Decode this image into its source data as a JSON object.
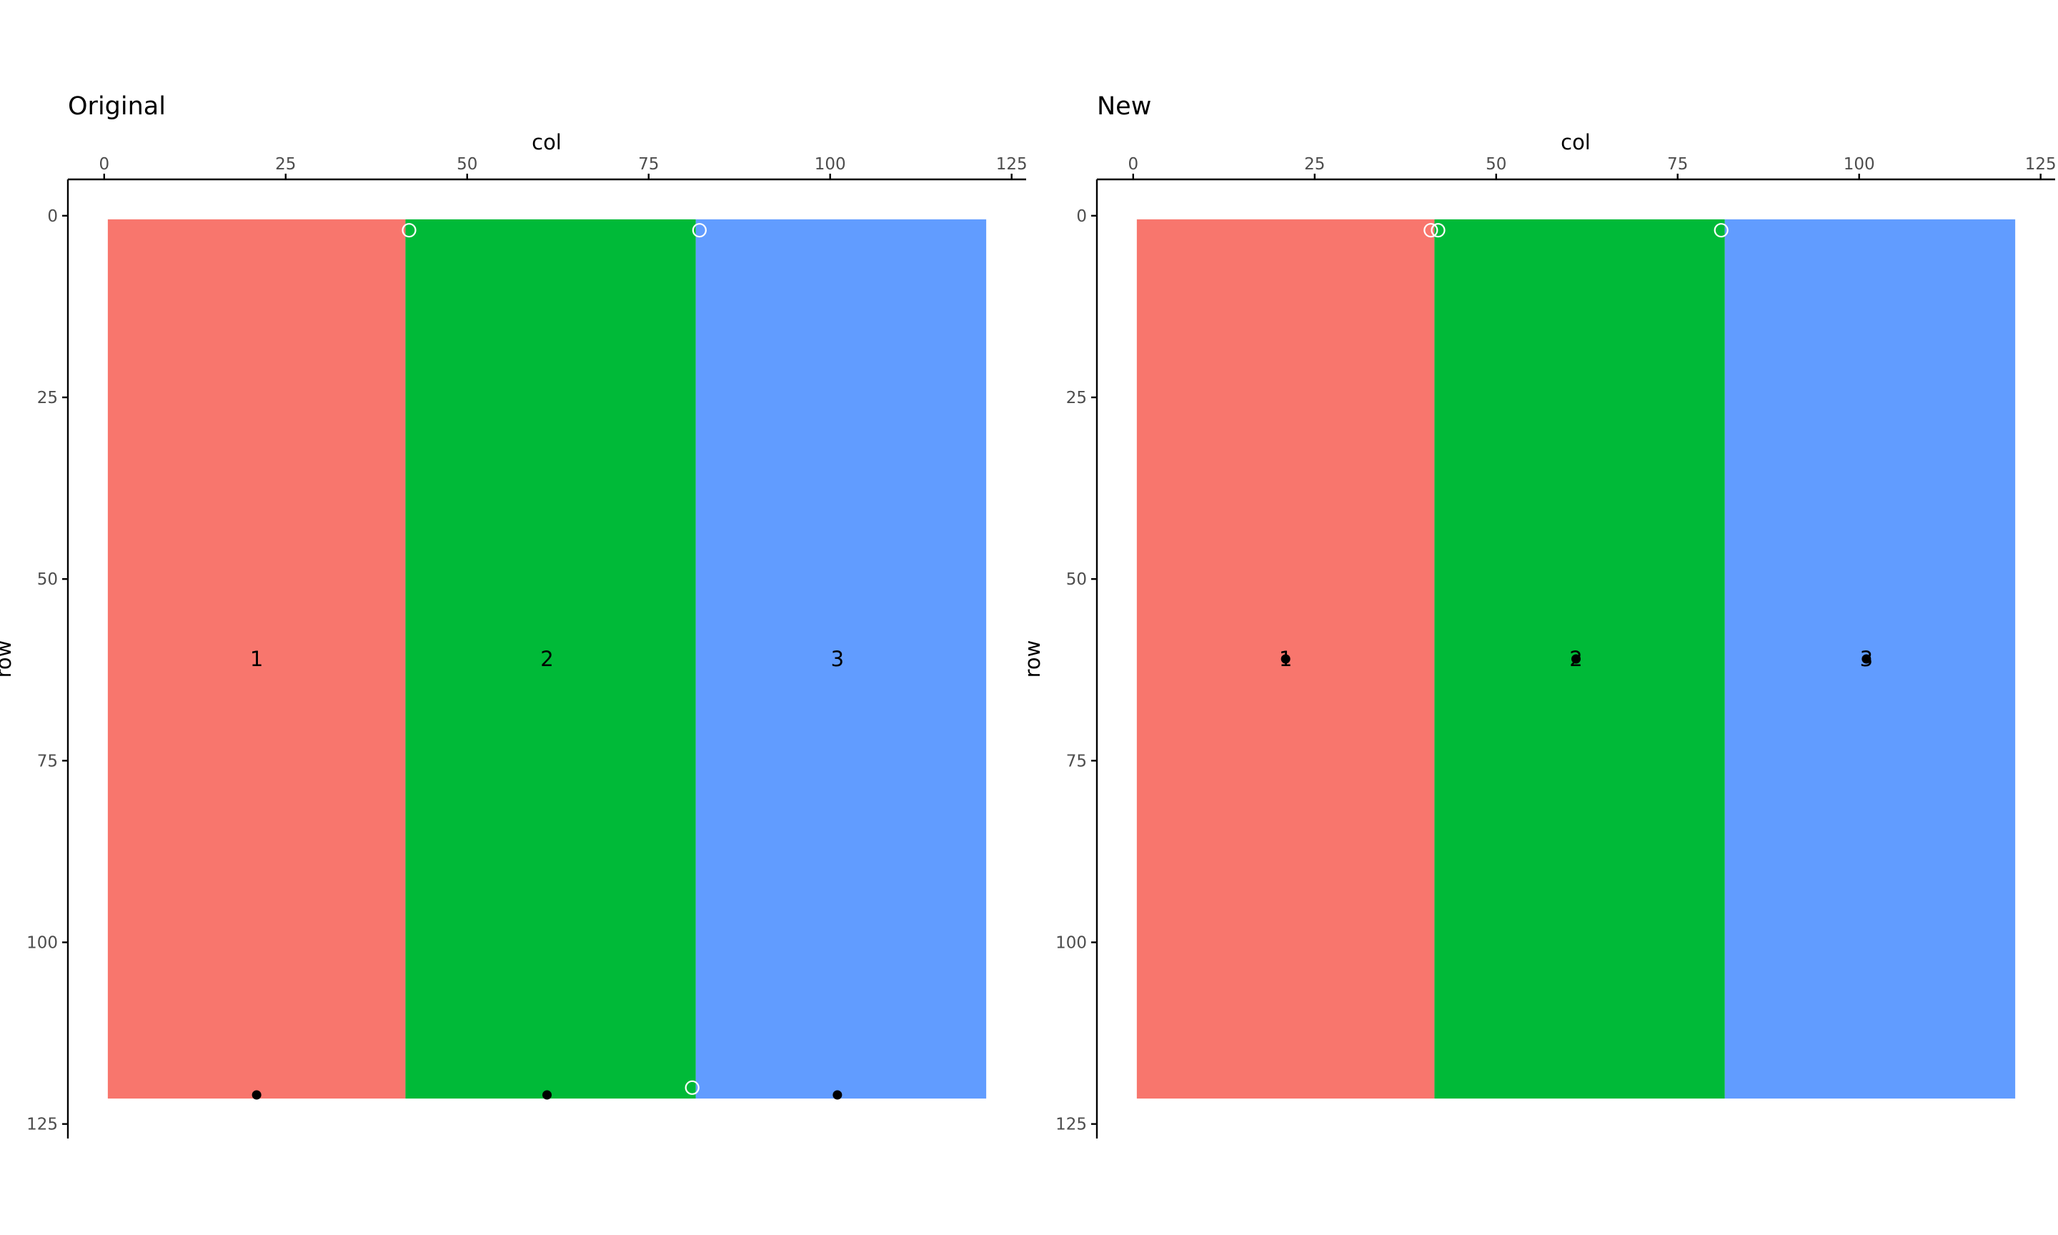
{
  "chart_data": [
    {
      "type": "tile",
      "title": "Original",
      "xlabel": "col",
      "ylabel": "row",
      "xlim": [
        -5,
        127
      ],
      "ylim": [
        127,
        -5
      ],
      "x_ticks": [
        "0",
        "25",
        "50",
        "75",
        "100",
        "125"
      ],
      "y_ticks": [
        "0",
        "25",
        "50",
        "75",
        "100",
        "125"
      ],
      "regions": [
        {
          "label": "1",
          "x_range": [
            0.5,
            41.5
          ],
          "y_range": [
            0.5,
            121.5
          ],
          "color": "#F8766D",
          "label_at": [
            21,
            61
          ]
        },
        {
          "label": "2",
          "x_range": [
            41.5,
            81.5
          ],
          "y_range": [
            0.5,
            121.5
          ],
          "color": "#00BA38",
          "label_at": [
            61,
            61
          ]
        },
        {
          "label": "3",
          "x_range": [
            81.5,
            121.5
          ],
          "y_range": [
            0.5,
            121.5
          ],
          "color": "#619CFF",
          "label_at": [
            101,
            61
          ]
        }
      ],
      "open_points": [
        [
          42,
          2
        ],
        [
          82,
          2
        ],
        [
          81,
          120
        ]
      ],
      "filled_points": [
        [
          21,
          121
        ],
        [
          61,
          121
        ],
        [
          101,
          121
        ]
      ]
    },
    {
      "type": "tile",
      "title": "New",
      "xlabel": "col",
      "ylabel": "row",
      "xlim": [
        -5,
        127
      ],
      "ylim": [
        127,
        -5
      ],
      "x_ticks": [
        "0",
        "25",
        "50",
        "75",
        "100",
        "125"
      ],
      "y_ticks": [
        "0",
        "25",
        "50",
        "75",
        "100",
        "125"
      ],
      "regions": [
        {
          "label": "1",
          "x_range": [
            0.5,
            41.5
          ],
          "y_range": [
            0.5,
            121.5
          ],
          "color": "#F8766D",
          "label_at": [
            21,
            61
          ]
        },
        {
          "label": "2",
          "x_range": [
            41.5,
            81.5
          ],
          "y_range": [
            0.5,
            121.5
          ],
          "color": "#00BA38",
          "label_at": [
            61,
            61
          ]
        },
        {
          "label": "3",
          "x_range": [
            81.5,
            121.5
          ],
          "y_range": [
            0.5,
            121.5
          ],
          "color": "#619CFF",
          "label_at": [
            101,
            61
          ]
        }
      ],
      "open_points": [
        [
          41,
          2
        ],
        [
          42,
          2
        ],
        [
          81,
          2
        ]
      ],
      "filled_points": [
        [
          21,
          61
        ],
        [
          61,
          61
        ],
        [
          101,
          61
        ]
      ]
    }
  ]
}
